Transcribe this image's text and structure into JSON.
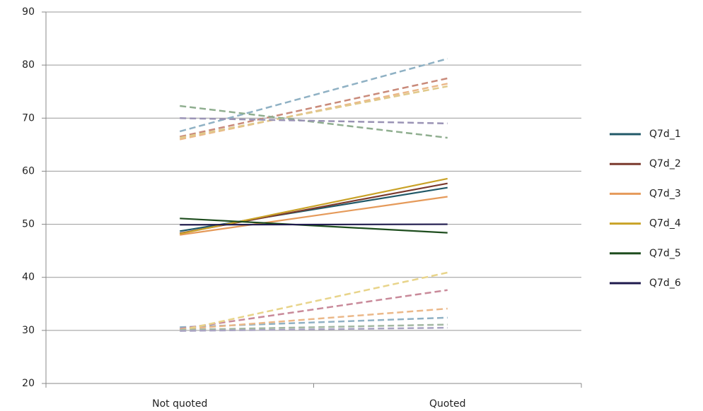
{
  "chart_data": {
    "type": "line",
    "categories": [
      "Not quoted",
      "Quoted"
    ],
    "ylim": [
      20,
      90
    ],
    "yticks": [
      20,
      30,
      40,
      50,
      60,
      70,
      80,
      90
    ],
    "grid": true,
    "series": [
      {
        "color": "#8fb1c4",
        "dash": true,
        "values": [
          67.5,
          81.2
        ]
      },
      {
        "color": "#c98a7a",
        "dash": true,
        "values": [
          66.5,
          77.5
        ]
      },
      {
        "color": "#ebb889",
        "dash": true,
        "values": [
          66.0,
          76.5
        ]
      },
      {
        "color": "#e0c98a",
        "dash": true,
        "values": [
          66.3,
          76.0
        ]
      },
      {
        "color": "#8fae8f",
        "dash": true,
        "values": [
          72.3,
          66.3
        ]
      },
      {
        "color": "#9a93b5",
        "dash": true,
        "values": [
          70.0,
          69.0
        ]
      },
      {
        "color": "#8fb1c4",
        "dash": true,
        "values": [
          30.6,
          32.4
        ]
      },
      {
        "color": "#c98a9a",
        "dash": true,
        "values": [
          30.3,
          37.6
        ]
      },
      {
        "color": "#ebb889",
        "dash": true,
        "values": [
          30.2,
          34.1
        ]
      },
      {
        "color": "#e8d48a",
        "dash": true,
        "values": [
          30.0,
          40.9
        ]
      },
      {
        "color": "#a3b8a3",
        "dash": true,
        "values": [
          30.1,
          31.1
        ]
      },
      {
        "color": "#a9a3c2",
        "dash": true,
        "values": [
          29.9,
          30.5
        ]
      },
      {
        "name": "Q7d_1",
        "color": "#215968",
        "values": [
          48.7,
          56.9
        ]
      },
      {
        "name": "Q7d_2",
        "color": "#7b3a2e",
        "values": [
          48.3,
          57.7
        ]
      },
      {
        "name": "Q7d_3",
        "color": "#e59a5a",
        "values": [
          48.0,
          55.2
        ]
      },
      {
        "name": "Q7d_4",
        "color": "#c9a227",
        "values": [
          48.2,
          58.6
        ]
      },
      {
        "name": "Q7d_5",
        "color": "#1e4d1e",
        "values": [
          51.1,
          48.4
        ]
      },
      {
        "name": "Q7d_6",
        "color": "#1f1a4d",
        "values": [
          49.9,
          50.0
        ]
      }
    ]
  }
}
